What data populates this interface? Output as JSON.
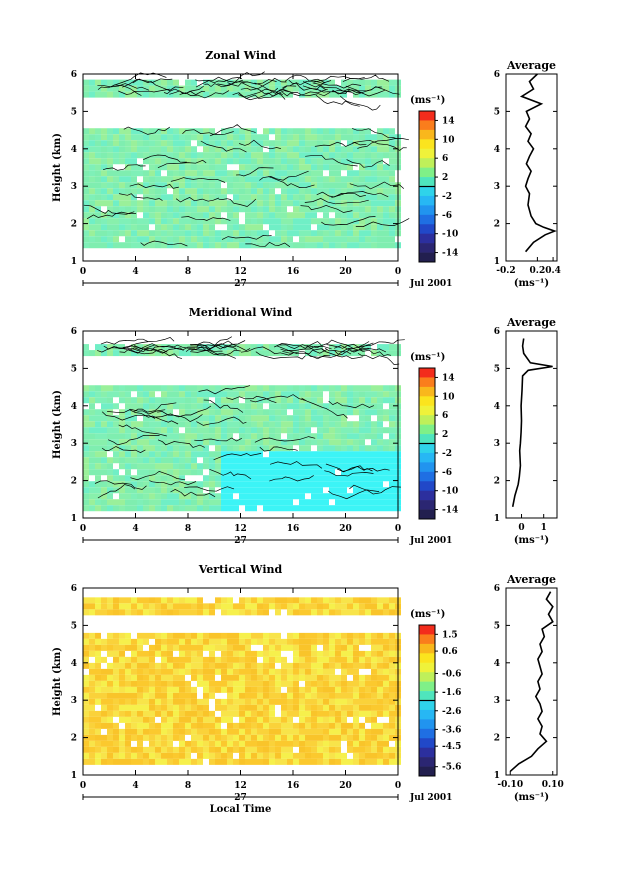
{
  "chart_data": [
    {
      "type": "heatmap",
      "title": "Zonal Wind",
      "xlabel": "",
      "ylabel": "Height (km)",
      "xticks": [
        "0",
        "4",
        "8",
        "12",
        "16",
        "20",
        "0"
      ],
      "yticks": [
        "1",
        "2",
        "3",
        "4",
        "5",
        "6"
      ],
      "date_day": "27",
      "date_label": "Jul 2001",
      "xlim": [
        0,
        24
      ],
      "ylim": [
        1,
        6
      ],
      "colorbar": {
        "unit": "(ms⁻¹)",
        "ticks": [
          "14",
          "10",
          "6",
          "2",
          "-2",
          "-6",
          "-10",
          "-14"
        ],
        "range": [
          -16,
          16
        ]
      },
      "profile": {
        "title": "Average",
        "xlabel": "(ms⁻¹)",
        "xticks": [
          "-0.2",
          "0.2",
          "0.4"
        ],
        "xlim": [
          -0.2,
          0.45
        ],
        "y": [
          1.25,
          1.5,
          1.7,
          1.8,
          1.9,
          2.0,
          2.2,
          2.5,
          2.8,
          3.0,
          3.2,
          3.4,
          3.6,
          3.8,
          4.0,
          4.2,
          4.4,
          4.6,
          4.8,
          5.0,
          5.2,
          5.4,
          5.6,
          5.8,
          6.0
        ],
        "x": [
          0.05,
          0.15,
          0.3,
          0.42,
          0.28,
          0.18,
          0.12,
          0.08,
          0.1,
          0.05,
          0.08,
          0.12,
          0.06,
          0.1,
          0.15,
          0.08,
          0.12,
          0.05,
          0.1,
          0.06,
          0.25,
          0.0,
          0.15,
          0.1,
          0.2
        ]
      }
    },
    {
      "type": "heatmap",
      "title": "Meridional Wind",
      "xlabel": "",
      "ylabel": "Height (km)",
      "xticks": [
        "0",
        "4",
        "8",
        "12",
        "16",
        "20",
        "0"
      ],
      "yticks": [
        "1",
        "2",
        "3",
        "4",
        "5",
        "6"
      ],
      "date_day": "27",
      "date_label": "Jul 2001",
      "xlim": [
        0,
        24
      ],
      "ylim": [
        1,
        6
      ],
      "colorbar": {
        "unit": "(ms⁻¹)",
        "ticks": [
          "14",
          "10",
          "6",
          "2",
          "-2",
          "-6",
          "-10",
          "-14"
        ],
        "range": [
          -16,
          16
        ]
      },
      "profile": {
        "title": "Average",
        "xlabel": "(ms⁻¹)",
        "xticks": [
          "0",
          "1"
        ],
        "xlim": [
          -0.7,
          1.6
        ],
        "y": [
          1.3,
          1.6,
          1.9,
          2.1,
          2.4,
          2.8,
          3.0,
          3.3,
          3.6,
          4.0,
          4.4,
          4.8,
          4.95,
          5.05,
          5.15,
          5.4,
          5.6,
          5.8
        ],
        "x": [
          -0.4,
          -0.3,
          -0.15,
          -0.1,
          -0.05,
          -0.08,
          -0.05,
          -0.02,
          0.0,
          -0.02,
          0.02,
          0.05,
          0.3,
          1.4,
          0.4,
          0.1,
          0.05,
          0.1
        ]
      }
    },
    {
      "type": "heatmap",
      "title": "Vertical Wind",
      "xlabel": "Local Time",
      "ylabel": "Height (km)",
      "xticks": [
        "0",
        "4",
        "8",
        "12",
        "16",
        "20",
        "0"
      ],
      "yticks": [
        "1",
        "2",
        "3",
        "4",
        "5",
        "6"
      ],
      "date_day": "27",
      "date_label": "Jul 2001",
      "xlim": [
        0,
        24
      ],
      "ylim": [
        1,
        6
      ],
      "colorbar": {
        "unit": "(ms⁻¹)",
        "ticks": [
          "1.5",
          "0.6",
          "-0.6",
          "-1.6",
          "-2.6",
          "-3.6",
          "-4.5",
          "-5.6"
        ],
        "range": [
          -6.1,
          2.0
        ]
      },
      "profile": {
        "title": "Average",
        "xlabel": "(ms⁻¹)",
        "xticks": [
          "-0.10",
          "0.10"
        ],
        "xlim": [
          -0.12,
          0.12
        ],
        "y": [
          1.1,
          1.3,
          1.5,
          1.7,
          1.9,
          2.1,
          2.3,
          2.5,
          2.7,
          2.9,
          3.1,
          3.3,
          3.5,
          3.7,
          3.9,
          4.1,
          4.3,
          4.5,
          4.7,
          4.9,
          5.1,
          5.3,
          5.5,
          5.7,
          5.9
        ],
        "x": [
          -0.1,
          -0.06,
          0.0,
          0.03,
          0.07,
          0.04,
          0.05,
          0.03,
          0.05,
          0.04,
          0.02,
          0.04,
          0.03,
          0.05,
          0.04,
          0.03,
          0.05,
          0.04,
          0.06,
          0.05,
          0.1,
          0.08,
          0.1,
          0.07,
          0.09
        ]
      }
    }
  ]
}
